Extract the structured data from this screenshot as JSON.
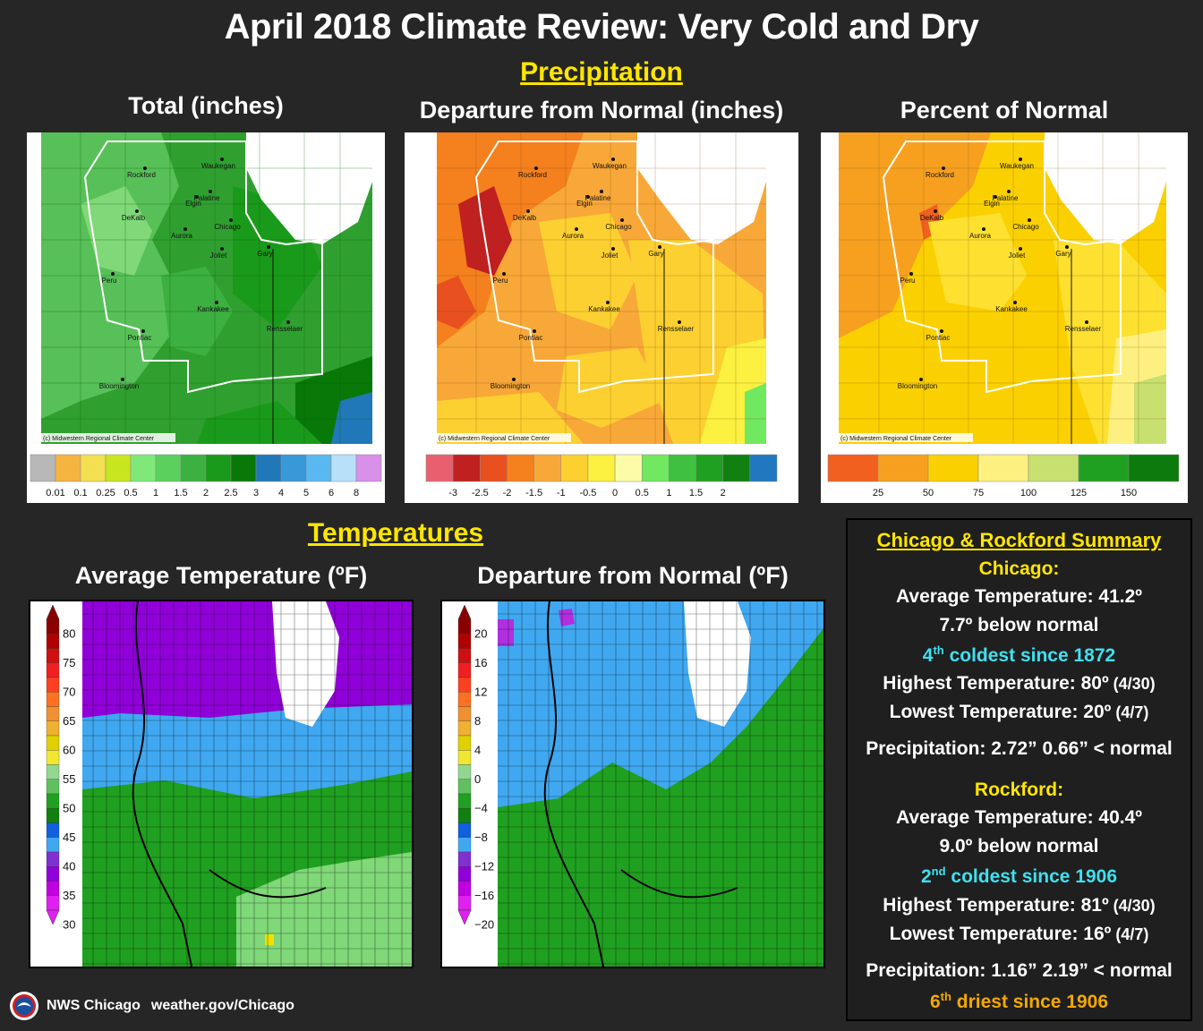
{
  "title": "April 2018 Climate Review: Very Cold and Dry",
  "precip": {
    "section_label": "Precipitation",
    "panels": [
      {
        "title": "Total (inches)",
        "credit": "(c) Midwestern Regional Climate Center",
        "legend": [
          "0.01",
          "0.1",
          "0.25",
          "0.5",
          "1",
          "1.5",
          "2",
          "2.5",
          "3",
          "4",
          "5",
          "6",
          "8"
        ]
      },
      {
        "title": "Departure from Normal (inches)",
        "credit": "(c) Midwestern Regional Climate Center",
        "legend": [
          "-3",
          "-2.5",
          "-2",
          "-1.5",
          "-1",
          "-0.5",
          "0",
          "0.5",
          "1",
          "1.5",
          "2"
        ]
      },
      {
        "title": "Percent of Normal",
        "credit": "(c) Midwestern Regional Climate Center",
        "legend": [
          "25",
          "50",
          "75",
          "100",
          "125",
          "150"
        ]
      }
    ],
    "cities": [
      "Rockford",
      "Waukegan",
      "Palatine",
      "Elgin",
      "DeKalb",
      "Aurora",
      "Chicago",
      "Joliet",
      "Gary",
      "Peru",
      "Kankakee",
      "Rensselaer",
      "Pontiac",
      "Bloomington"
    ]
  },
  "temps": {
    "section_label": "Temperatures",
    "avg_title": "Average Temperature (ºF)",
    "dep_title": "Departure from Normal (ºF)",
    "avg_legend": [
      "80",
      "75",
      "70",
      "65",
      "60",
      "55",
      "50",
      "45",
      "40",
      "35",
      "30"
    ],
    "dep_legend": [
      "20",
      "16",
      "12",
      "8",
      "4",
      "0",
      "−4",
      "−8",
      "−12",
      "−16",
      "−20"
    ]
  },
  "summary": {
    "heading": "Chicago & Rockford Summary",
    "chicago": {
      "name": "Chicago:",
      "avg": "Average Temperature:  41.2º",
      "below": "7.7º below normal",
      "rank_sup": "th",
      "rank_num": "4",
      "rank_rest": " coldest since 1872",
      "high": "Highest Temperature:  80º",
      "high_date": " (4/30)",
      "low": "Lowest Temperature:  20º",
      "low_date": " (4/7)",
      "precip": "Precipitation:  2.72”  0.66” < normal"
    },
    "rockford": {
      "name": "Rockford:",
      "avg": "Average Temperature:  40.4º",
      "below": "9.0º below normal",
      "rank_num": "2",
      "rank_sup": "nd",
      "rank_rest": " coldest since 1906",
      "high": "Highest Temperature:  81º",
      "high_date": " (4/30)",
      "low": "Lowest Temperature:  16º",
      "low_date": " (4/7)",
      "precip": "Precipitation:  1.16”   2.19” < normal",
      "dry_num": "6",
      "dry_sup": "th",
      "dry_rest": " driest since 1906"
    }
  },
  "footer": {
    "org": "NWS Chicago",
    "url": "weather.gov/Chicago"
  },
  "colors": {
    "accent_yellow": "#ffe600",
    "cyan": "#3fe0f0",
    "gold": "#f5a800",
    "total_scale": [
      "#b8b8b8",
      "#f5b440",
      "#f2e050",
      "#c8e620",
      "#80e878",
      "#5cd05c",
      "#3cb040",
      "#1a9a1a",
      "#087808",
      "#2078b8",
      "#3898d8",
      "#5ab8f0",
      "#b8e0f8",
      "#d890e8"
    ],
    "dep_scale": [
      "#e86070",
      "#c02020",
      "#e85020",
      "#f5801e",
      "#f8a838",
      "#fcd030",
      "#fcf040",
      "#fcfca8",
      "#70e860",
      "#40c040",
      "#20a020",
      "#108010",
      "#2078c0"
    ],
    "pct_scale": [
      "#f26020",
      "#f7a020",
      "#fbd000",
      "#fef080",
      "#c8e070",
      "#20a020",
      "#0c7a0c"
    ]
  }
}
